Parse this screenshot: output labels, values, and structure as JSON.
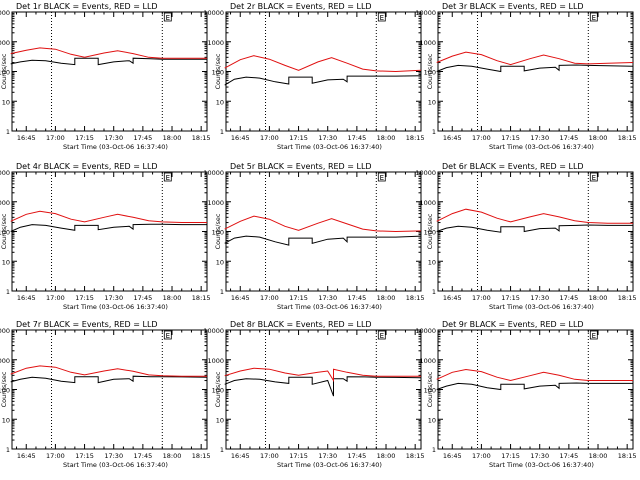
{
  "chart_data": [
    {
      "type": "line",
      "title": "Det 1r BLACK = Events, RED = LLD",
      "xlabel": "Start Time (03-Oct-06 16:37:40)",
      "ylabel": "Counts/sec",
      "yscale": "log",
      "ylim": [
        1,
        10000
      ],
      "xlim": [
        "16:37:40",
        "18:18:00"
      ],
      "grid": false,
      "yticks": [
        "1",
        "10",
        "100",
        "1000",
        "10000"
      ],
      "xticks": [
        "16:45",
        "17:00",
        "17:15",
        "17:30",
        "17:45",
        "18:00",
        "18:15"
      ],
      "vlines": [
        "16:58",
        "17:55"
      ],
      "flag_label": "E",
      "series": [
        {
          "color": "#000000",
          "x": [
            "16:37",
            "16:42",
            "16:48",
            "16:55",
            "17:03",
            "17:10",
            "17:10",
            "17:22",
            "17:22",
            "17:30",
            "17:38",
            "17:40",
            "17:40",
            "17:49",
            "17:55",
            "18:05",
            "18:18"
          ],
          "values": [
            180,
            210,
            240,
            230,
            190,
            170,
            280,
            280,
            170,
            210,
            230,
            190,
            280,
            270,
            260,
            260,
            260
          ]
        },
        {
          "color": "#e01010",
          "x": [
            "16:37",
            "16:45",
            "16:52",
            "17:00",
            "17:08",
            "17:15",
            "17:25",
            "17:32",
            "17:40",
            "17:48",
            "17:55",
            "18:05",
            "18:18"
          ],
          "values": [
            400,
            520,
            620,
            560,
            380,
            300,
            420,
            500,
            400,
            300,
            280,
            280,
            280
          ]
        }
      ]
    },
    {
      "type": "line",
      "title": "Det 2r BLACK = Events, RED = LLD",
      "xlabel": "Start Time (03-Oct-06 16:37:40)",
      "ylabel": "Counts/sec",
      "yscale": "log",
      "ylim": [
        1,
        10000
      ],
      "xlim": [
        "16:37:40",
        "18:18:00"
      ],
      "grid": false,
      "yticks": [
        "1",
        "10",
        "100",
        "1000",
        "10000"
      ],
      "xticks": [
        "16:45",
        "17:00",
        "17:15",
        "17:30",
        "17:45",
        "18:00",
        "18:15"
      ],
      "vlines": [
        "16:58",
        "17:55"
      ],
      "flag_label": "E",
      "series": [
        {
          "color": "#000000",
          "x": [
            "16:37",
            "16:42",
            "16:48",
            "16:55",
            "17:03",
            "17:10",
            "17:10",
            "17:22",
            "17:22",
            "17:30",
            "17:38",
            "17:40",
            "17:40",
            "17:49",
            "17:55",
            "18:05",
            "18:18"
          ],
          "values": [
            35,
            55,
            65,
            60,
            45,
            38,
            65,
            65,
            40,
            52,
            55,
            45,
            70,
            70,
            70,
            70,
            72
          ]
        },
        {
          "color": "#e01010",
          "x": [
            "16:37",
            "16:45",
            "16:52",
            "17:00",
            "17:08",
            "17:15",
            "17:25",
            "17:32",
            "17:40",
            "17:48",
            "17:55",
            "18:05",
            "18:18"
          ],
          "values": [
            130,
            250,
            340,
            260,
            160,
            110,
            210,
            290,
            190,
            120,
            105,
            100,
            110
          ]
        }
      ]
    },
    {
      "type": "line",
      "title": "Det 3r BLACK = Events, RED = LLD",
      "xlabel": "Start Time (03-Oct-06 16:37:40)",
      "ylabel": "Counts/sec",
      "yscale": "log",
      "ylim": [
        1,
        10000
      ],
      "xlim": [
        "16:37:40",
        "18:18:00"
      ],
      "grid": false,
      "yticks": [
        "1",
        "10",
        "100",
        "1000",
        "10000"
      ],
      "xticks": [
        "16:45",
        "17:00",
        "17:15",
        "17:30",
        "17:45",
        "18:00",
        "18:15"
      ],
      "vlines": [
        "16:58",
        "17:55"
      ],
      "flag_label": "E",
      "series": [
        {
          "color": "#000000",
          "x": [
            "16:37",
            "16:42",
            "16:48",
            "16:55",
            "17:03",
            "17:10",
            "17:10",
            "17:22",
            "17:22",
            "17:30",
            "17:38",
            "17:40",
            "17:40",
            "17:49",
            "17:55",
            "18:05",
            "18:18"
          ],
          "values": [
            100,
            135,
            160,
            150,
            120,
            100,
            150,
            150,
            105,
            130,
            140,
            110,
            160,
            165,
            160,
            155,
            150
          ]
        },
        {
          "color": "#e01010",
          "x": [
            "16:37",
            "16:45",
            "16:52",
            "17:00",
            "17:08",
            "17:15",
            "17:25",
            "17:32",
            "17:40",
            "17:48",
            "17:55",
            "18:05",
            "18:18"
          ],
          "values": [
            200,
            330,
            450,
            370,
            230,
            170,
            270,
            360,
            270,
            190,
            180,
            190,
            200
          ]
        }
      ]
    },
    {
      "type": "line",
      "title": "Det 4r BLACK = Events, RED = LLD",
      "xlabel": "Start Time (03-Oct-06 16:37:40)",
      "ylabel": "Counts/sec",
      "yscale": "log",
      "ylim": [
        1,
        10000
      ],
      "xlim": [
        "16:37:40",
        "18:18:00"
      ],
      "grid": false,
      "yticks": [
        "1",
        "10",
        "100",
        "1000",
        "10000"
      ],
      "xticks": [
        "16:45",
        "17:00",
        "17:15",
        "17:30",
        "17:45",
        "18:00",
        "18:15"
      ],
      "vlines": [
        "16:58",
        "17:55"
      ],
      "flag_label": "E",
      "series": [
        {
          "color": "#000000",
          "x": [
            "16:37",
            "16:42",
            "16:48",
            "16:55",
            "17:03",
            "17:10",
            "17:10",
            "17:22",
            "17:22",
            "17:30",
            "17:38",
            "17:40",
            "17:40",
            "17:49",
            "17:55",
            "18:05",
            "18:18"
          ],
          "values": [
            100,
            140,
            170,
            160,
            130,
            110,
            160,
            160,
            115,
            140,
            150,
            120,
            170,
            175,
            175,
            170,
            170
          ]
        },
        {
          "color": "#e01010",
          "x": [
            "16:37",
            "16:45",
            "16:52",
            "17:00",
            "17:08",
            "17:15",
            "17:25",
            "17:32",
            "17:40",
            "17:48",
            "17:55",
            "18:05",
            "18:18"
          ],
          "values": [
            220,
            380,
            480,
            400,
            260,
            210,
            300,
            380,
            300,
            230,
            210,
            200,
            200
          ]
        }
      ]
    },
    {
      "type": "line",
      "title": "Det 5r BLACK = Events, RED = LLD",
      "xlabel": "Start Time (03-Oct-06 16:37:40)",
      "ylabel": "Counts/sec",
      "yscale": "log",
      "ylim": [
        1,
        10000
      ],
      "xlim": [
        "16:37:40",
        "18:18:00"
      ],
      "grid": false,
      "yticks": [
        "1",
        "10",
        "100",
        "1000",
        "10000"
      ],
      "xticks": [
        "16:45",
        "17:00",
        "17:15",
        "17:30",
        "17:45",
        "18:00",
        "18:15"
      ],
      "vlines": [
        "16:58",
        "17:55"
      ],
      "flag_label": "E",
      "series": [
        {
          "color": "#000000",
          "x": [
            "16:37",
            "16:42",
            "16:48",
            "16:55",
            "17:03",
            "17:10",
            "17:10",
            "17:22",
            "17:22",
            "17:30",
            "17:38",
            "17:40",
            "17:40",
            "17:49",
            "17:55",
            "18:05",
            "18:18"
          ],
          "values": [
            40,
            60,
            70,
            65,
            45,
            35,
            60,
            60,
            40,
            55,
            60,
            45,
            65,
            65,
            65,
            65,
            70
          ]
        },
        {
          "color": "#e01010",
          "x": [
            "16:37",
            "16:45",
            "16:52",
            "17:00",
            "17:08",
            "17:15",
            "17:25",
            "17:32",
            "17:40",
            "17:48",
            "17:55",
            "18:05",
            "18:18"
          ],
          "values": [
            120,
            220,
            330,
            260,
            150,
            110,
            190,
            270,
            180,
            120,
            105,
            100,
            105
          ]
        }
      ]
    },
    {
      "type": "line",
      "title": "Det 6r BLACK = Events, RED = LLD",
      "xlabel": "Start Time (03-Oct-06 16:37:40)",
      "ylabel": "Counts/sec",
      "yscale": "log",
      "ylim": [
        1,
        10000
      ],
      "xlim": [
        "16:37:40",
        "18:18:00"
      ],
      "grid": false,
      "yticks": [
        "1",
        "10",
        "100",
        "1000",
        "10000"
      ],
      "xticks": [
        "16:45",
        "17:00",
        "17:15",
        "17:30",
        "17:45",
        "18:00",
        "18:15"
      ],
      "vlines": [
        "16:58",
        "17:55"
      ],
      "flag_label": "E",
      "series": [
        {
          "color": "#000000",
          "x": [
            "16:37",
            "16:42",
            "16:48",
            "16:55",
            "17:03",
            "17:10",
            "17:10",
            "17:22",
            "17:22",
            "17:30",
            "17:38",
            "17:40",
            "17:40",
            "17:49",
            "17:55",
            "18:05",
            "18:18"
          ],
          "values": [
            100,
            130,
            150,
            140,
            110,
            95,
            145,
            145,
            100,
            125,
            130,
            105,
            155,
            160,
            165,
            160,
            160
          ]
        },
        {
          "color": "#e01010",
          "x": [
            "16:37",
            "16:45",
            "16:52",
            "17:00",
            "17:08",
            "17:15",
            "17:25",
            "17:32",
            "17:40",
            "17:48",
            "17:55",
            "18:05",
            "18:18"
          ],
          "values": [
            220,
            400,
            560,
            450,
            280,
            210,
            310,
            400,
            310,
            230,
            200,
            190,
            190
          ]
        }
      ]
    },
    {
      "type": "line",
      "title": "Det 7r BLACK = Events, RED = LLD",
      "xlabel": "Start Time (03-Oct-06 16:37:40)",
      "ylabel": "Counts/sec",
      "yscale": "log",
      "ylim": [
        1,
        10000
      ],
      "xlim": [
        "16:37:40",
        "18:18:00"
      ],
      "grid": false,
      "yticks": [
        "1",
        "10",
        "100",
        "1000",
        "10000"
      ],
      "xticks": [
        "16:45",
        "17:00",
        "17:15",
        "17:30",
        "17:45",
        "18:00",
        "18:15"
      ],
      "vlines": [
        "16:58",
        "17:55"
      ],
      "flag_label": "E",
      "series": [
        {
          "color": "#000000",
          "x": [
            "16:37",
            "16:42",
            "16:48",
            "16:55",
            "17:03",
            "17:10",
            "17:10",
            "17:22",
            "17:22",
            "17:30",
            "17:38",
            "17:40",
            "17:40",
            "17:49",
            "17:55",
            "18:05",
            "18:18"
          ],
          "values": [
            180,
            220,
            260,
            240,
            190,
            170,
            270,
            270,
            170,
            220,
            230,
            190,
            280,
            270,
            270,
            265,
            260
          ]
        },
        {
          "color": "#e01010",
          "x": [
            "16:37",
            "16:45",
            "16:52",
            "17:00",
            "17:08",
            "17:15",
            "17:25",
            "17:32",
            "17:40",
            "17:48",
            "17:55",
            "18:05",
            "18:18"
          ],
          "values": [
            330,
            520,
            620,
            560,
            380,
            310,
            420,
            500,
            410,
            310,
            290,
            280,
            280
          ]
        }
      ]
    },
    {
      "type": "line",
      "title": "Det 8r BLACK = Events, RED = LLD",
      "xlabel": "Start Time (03-Oct-06 16:37:40)",
      "ylabel": "Counts/sec",
      "yscale": "log",
      "ylim": [
        1,
        10000
      ],
      "xlim": [
        "16:37:40",
        "18:18:00"
      ],
      "grid": false,
      "yticks": [
        "1",
        "10",
        "100",
        "1000",
        "10000"
      ],
      "xticks": [
        "16:45",
        "17:00",
        "17:15",
        "17:30",
        "17:45",
        "18:00",
        "18:15"
      ],
      "vlines": [
        "16:58",
        "17:55"
      ],
      "flag_label": "E",
      "series": [
        {
          "color": "#000000",
          "x": [
            "16:37",
            "16:42",
            "16:48",
            "16:55",
            "17:03",
            "17:10",
            "17:10",
            "17:22",
            "17:22",
            "17:30",
            "17:33",
            "17:33",
            "17:38",
            "17:40",
            "17:40",
            "17:49",
            "17:55",
            "18:05",
            "18:18"
          ],
          "values": [
            150,
            200,
            230,
            220,
            180,
            160,
            260,
            260,
            150,
            200,
            60,
            230,
            230,
            190,
            270,
            265,
            260,
            255,
            250
          ]
        },
        {
          "color": "#e01010",
          "x": [
            "16:37",
            "16:45",
            "16:52",
            "17:00",
            "17:08",
            "17:15",
            "17:25",
            "17:30",
            "17:33",
            "17:33",
            "17:40",
            "17:48",
            "17:55",
            "18:05",
            "18:18"
          ],
          "values": [
            290,
            420,
            520,
            480,
            360,
            300,
            380,
            420,
            200,
            480,
            380,
            300,
            280,
            280,
            280
          ]
        }
      ]
    },
    {
      "type": "line",
      "title": "Det 9r BLACK = Events, RED = LLD",
      "xlabel": "Start Time (03-Oct-06 16:37:40)",
      "ylabel": "Counts/sec",
      "yscale": "log",
      "ylim": [
        1,
        10000
      ],
      "xlim": [
        "16:37:40",
        "18:18:00"
      ],
      "grid": false,
      "yticks": [
        "1",
        "10",
        "100",
        "1000",
        "10000"
      ],
      "xticks": [
        "16:45",
        "17:00",
        "17:15",
        "17:30",
        "17:45",
        "18:00",
        "18:15"
      ],
      "vlines": [
        "16:58",
        "17:55"
      ],
      "flag_label": "E",
      "series": [
        {
          "color": "#000000",
          "x": [
            "16:37",
            "16:42",
            "16:48",
            "16:55",
            "17:03",
            "17:10",
            "17:10",
            "17:22",
            "17:22",
            "17:30",
            "17:38",
            "17:40",
            "17:40",
            "17:49",
            "17:55",
            "18:05",
            "18:18"
          ],
          "values": [
            100,
            130,
            160,
            150,
            115,
            100,
            150,
            150,
            105,
            130,
            140,
            110,
            160,
            165,
            160,
            160,
            160
          ]
        },
        {
          "color": "#e01010",
          "x": [
            "16:37",
            "16:45",
            "16:52",
            "17:00",
            "17:08",
            "17:15",
            "17:25",
            "17:32",
            "17:40",
            "17:48",
            "17:55",
            "18:05",
            "18:18"
          ],
          "values": [
            220,
            380,
            470,
            400,
            260,
            200,
            290,
            380,
            300,
            220,
            200,
            200,
            200
          ]
        }
      ]
    }
  ]
}
